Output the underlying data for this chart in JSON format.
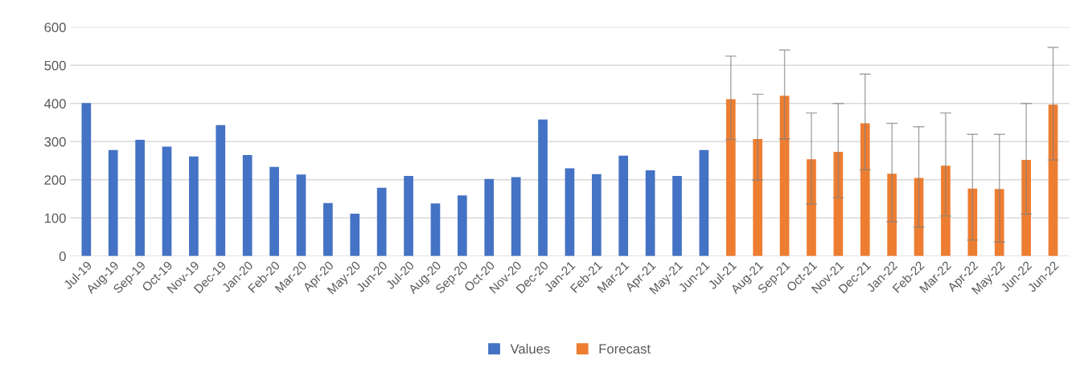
{
  "chart_data": {
    "type": "bar",
    "categories": [
      "Jul-19",
      "Aug-19",
      "Sep-19",
      "Oct-19",
      "Nov-19",
      "Dec-19",
      "Jan-20",
      "Feb-20",
      "Mar-20",
      "Apr-20",
      "May-20",
      "Jun-20",
      "Jul-20",
      "Aug-20",
      "Sep-20",
      "Oct-20",
      "Nov-20",
      "Dec-20",
      "Jan-21",
      "Feb-21",
      "Mar-21",
      "Apr-21",
      "May-21",
      "Jun-21",
      "Jul-21",
      "Aug-21",
      "Sep-21",
      "Oct-21",
      "Nov-21",
      "Dec-21",
      "Jan-22",
      "Feb-22",
      "Mar-22",
      "Apr-22",
      "May-22",
      "Jun-22",
      "Jun-22"
    ],
    "series": [
      {
        "name": "Values",
        "color": "#4472c4",
        "values": [
          401,
          278,
          305,
          287,
          261,
          343,
          265,
          234,
          214,
          139,
          111,
          179,
          210,
          138,
          159,
          202,
          207,
          358,
          230,
          215,
          263,
          225,
          210,
          278,
          null,
          null,
          null,
          null,
          null,
          null,
          null,
          null,
          null,
          null,
          null,
          null,
          null
        ]
      },
      {
        "name": "Forecast",
        "color": "#ed7d31",
        "values": [
          null,
          null,
          null,
          null,
          null,
          null,
          null,
          null,
          null,
          null,
          null,
          null,
          null,
          null,
          null,
          null,
          null,
          null,
          null,
          null,
          null,
          null,
          null,
          null,
          411,
          307,
          420,
          254,
          273,
          348,
          216,
          205,
          237,
          177,
          176,
          252,
          397
        ],
        "errors": [
          null,
          null,
          null,
          null,
          null,
          null,
          null,
          null,
          null,
          null,
          null,
          null,
          null,
          null,
          null,
          null,
          null,
          null,
          null,
          null,
          null,
          null,
          null,
          null,
          [
            305,
            524
          ],
          [
            199,
            424
          ],
          [
            307,
            540
          ],
          [
            137,
            375
          ],
          [
            153,
            400
          ],
          [
            226,
            477
          ],
          [
            90,
            348
          ],
          [
            76,
            339
          ],
          [
            105,
            375
          ],
          [
            42,
            319
          ],
          [
            37,
            319
          ],
          [
            110,
            400
          ],
          [
            252,
            547
          ]
        ]
      }
    ],
    "ylim": [
      0,
      600
    ],
    "yticks": [
      0,
      100,
      200,
      300,
      400,
      500,
      600
    ],
    "grid": "y",
    "legend": "bottom"
  }
}
